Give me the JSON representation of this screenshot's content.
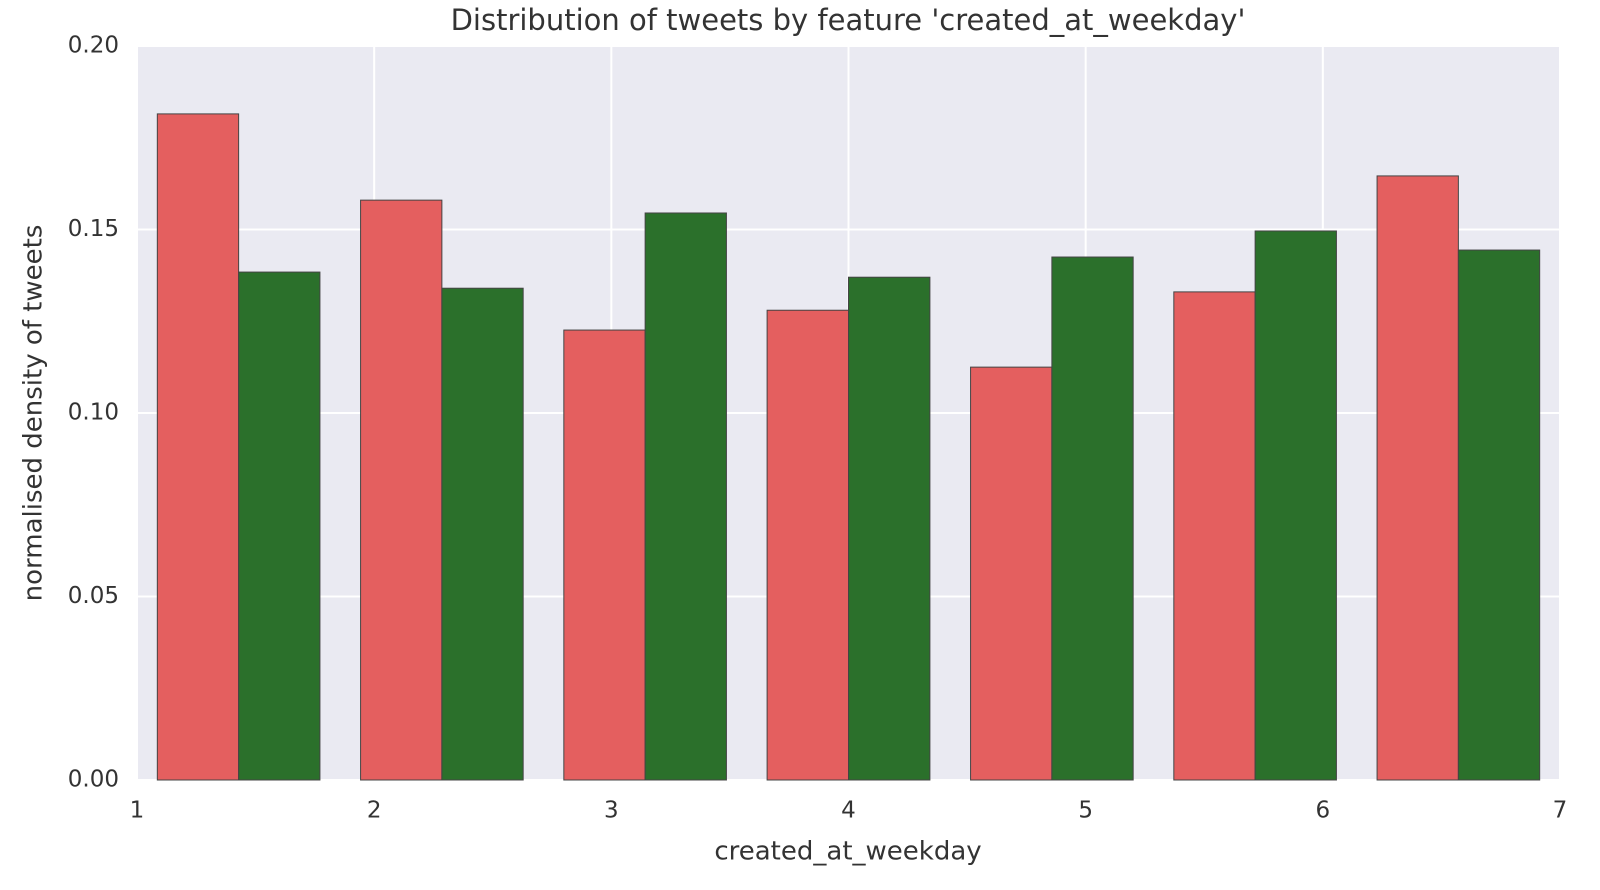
{
  "chart_data": {
    "type": "histogram",
    "title": "Distribution of tweets by feature 'created_at_weekday'",
    "x_label": "created_at_weekday",
    "y_label": "normalised density of tweets",
    "bins": [
      1,
      1.857,
      2.714,
      3.571,
      4.429,
      5.286,
      6.143,
      7
    ],
    "series": [
      {
        "color": "#e45f5f",
        "values": [
          0.1815,
          0.158,
          0.1226,
          0.128,
          0.1125,
          0.133,
          0.1646
        ]
      },
      {
        "color": "#2b702b",
        "values": [
          0.1384,
          0.134,
          0.1545,
          0.137,
          0.1425,
          0.1496,
          0.1444
        ]
      }
    ],
    "xlim": [
      1,
      7
    ],
    "xticks": [
      1,
      2,
      3,
      4,
      5,
      6,
      7
    ],
    "ylim": [
      0,
      0.2
    ],
    "yticks": [
      {
        "value": 0,
        "label": "0.00"
      },
      {
        "value": 0.05,
        "label": "0.05"
      },
      {
        "value": 0.1,
        "label": "0.10"
      },
      {
        "value": 0.15,
        "label": "0.15"
      },
      {
        "value": 0.2,
        "label": "0.20"
      }
    ],
    "grid": true
  }
}
